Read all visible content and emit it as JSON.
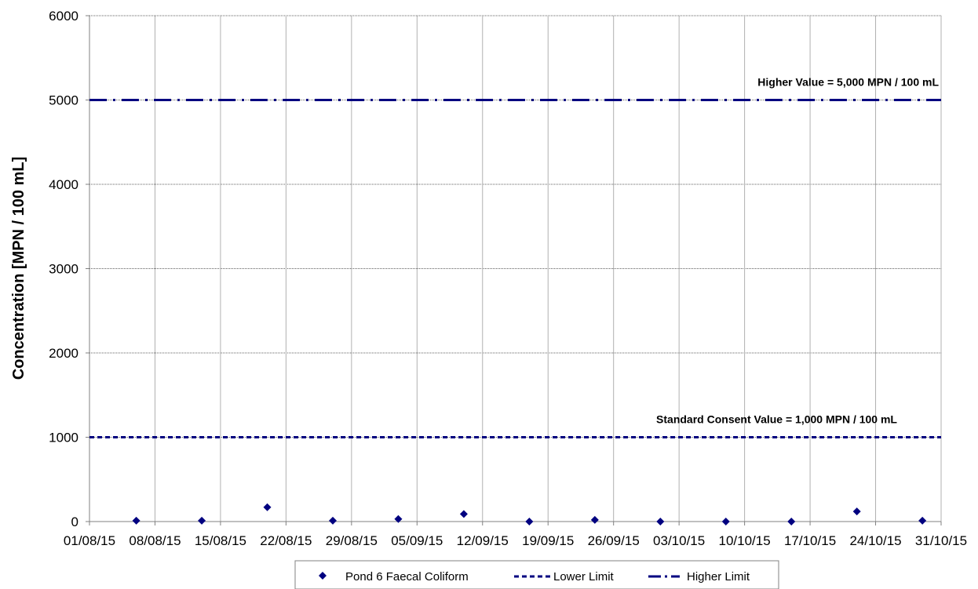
{
  "chart_data": {
    "type": "scatter",
    "title": "",
    "xlabel": "",
    "ylabel": "Concentration [MPN / 100 mL]",
    "ylim": [
      0,
      6000
    ],
    "yticks": [
      "0",
      "1000",
      "2000",
      "3000",
      "4000",
      "5000",
      "6000"
    ],
    "x_tick_labels": [
      "01/08/15",
      "08/08/15",
      "15/08/15",
      "22/08/15",
      "29/08/15",
      "05/09/15",
      "12/09/15",
      "19/09/15",
      "26/09/15",
      "03/10/15",
      "10/10/15",
      "17/10/15",
      "24/10/15",
      "31/10/15"
    ],
    "x_tick_dates": [
      "2015-08-01",
      "2015-08-08",
      "2015-08-15",
      "2015-08-22",
      "2015-08-29",
      "2015-09-05",
      "2015-09-12",
      "2015-09-19",
      "2015-09-26",
      "2015-10-03",
      "2015-10-10",
      "2015-10-17",
      "2015-10-24",
      "2015-10-31"
    ],
    "xlim": [
      "2015-08-01",
      "2015-10-31"
    ],
    "grid": true,
    "legend_position": "bottom",
    "series": [
      {
        "name": "Pond 6 Faecal Coliform",
        "marker": "diamond",
        "color": "#000080",
        "x": [
          "2015-08-06",
          "2015-08-13",
          "2015-08-20",
          "2015-08-27",
          "2015-09-03",
          "2015-09-10",
          "2015-09-17",
          "2015-09-24",
          "2015-10-01",
          "2015-10-08",
          "2015-10-15",
          "2015-10-22",
          "2015-10-29"
        ],
        "y": [
          10,
          10,
          170,
          10,
          30,
          90,
          0,
          20,
          0,
          0,
          0,
          120,
          10
        ]
      },
      {
        "name": "Lower Limit",
        "style": "dashed",
        "color": "#000080",
        "y_constant": 1000
      },
      {
        "name": "Higher Limit",
        "style": "dash-dot",
        "color": "#000080",
        "y_constant": 5000
      }
    ],
    "annotations": [
      {
        "text": "Standard Consent Value = 1,000 MPN / 100 mL",
        "y": 1000
      },
      {
        "text": "Higher Value = 5,000 MPN / 100 mL",
        "y": 5000
      }
    ]
  }
}
